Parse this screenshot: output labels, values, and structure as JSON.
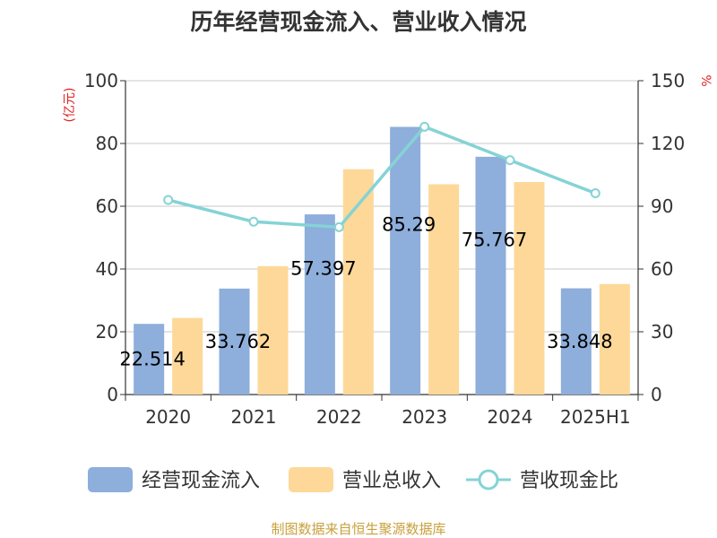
{
  "chart_data": {
    "type": "bar",
    "title": "历年经营现金流入、营业收入情况",
    "categories": [
      "2020",
      "2021",
      "2022",
      "2023",
      "2024",
      "2025H1"
    ],
    "series": [
      {
        "name": "经营现金流入",
        "type": "bar",
        "axis": "left",
        "color": "#8eaedb",
        "values": [
          22.514,
          33.762,
          57.397,
          85.29,
          75.767,
          33.848
        ],
        "labels": [
          "22.514",
          "33.762",
          "57.397",
          "85.29",
          "75.767",
          "33.848"
        ]
      },
      {
        "name": "营业总收入",
        "type": "bar",
        "axis": "left",
        "color": "#fdd898",
        "values": [
          24.4,
          40.9,
          71.8,
          67.0,
          67.7,
          35.2
        ]
      },
      {
        "name": "营收现金比",
        "type": "line",
        "axis": "right",
        "color": "#85d3d5",
        "values": [
          93.0,
          82.6,
          80.0,
          128.0,
          112.0,
          96.2
        ]
      }
    ],
    "y_left": {
      "unit": "(亿元)",
      "range": [
        0,
        100
      ],
      "ticks": [
        "0",
        "20",
        "40",
        "60",
        "80",
        "100"
      ]
    },
    "y_right": {
      "unit": "%",
      "range": [
        0,
        150
      ],
      "ticks": [
        "0",
        "30",
        "60",
        "90",
        "120",
        "150"
      ]
    },
    "grid": true,
    "legend_position": "bottom"
  },
  "footer": {
    "source": "制图数据来自恒生聚源数据库"
  }
}
